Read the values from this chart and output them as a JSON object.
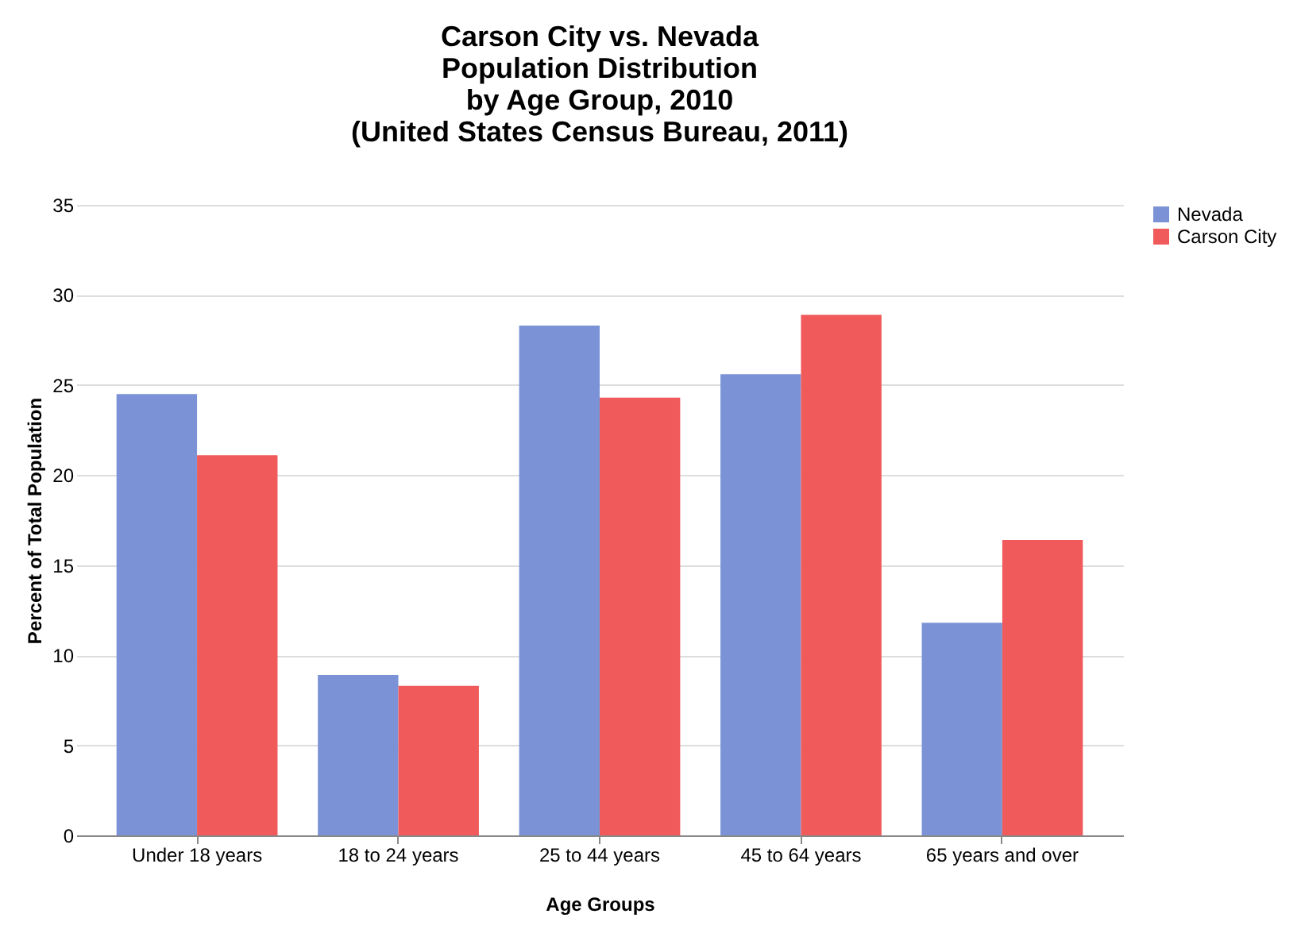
{
  "chart_data": {
    "type": "bar",
    "title": "Carson City vs. Nevada\nPopulation Distribution\nby Age Group, 2010\n(United States Census Bureau, 2011)",
    "xlabel": "Age Groups",
    "ylabel": "Percent of Total Population",
    "categories": [
      "Under 18 years",
      "18 to 24 years",
      "25 to 44 years",
      "45 to 64 years",
      "65 years and over"
    ],
    "series": [
      {
        "name": "Nevada",
        "color": "#7b93d6",
        "values": [
          24.5,
          8.9,
          28.3,
          25.6,
          11.8
        ]
      },
      {
        "name": "Carson City",
        "color": "#f05a5a",
        "values": [
          21.1,
          8.3,
          24.3,
          28.9,
          16.4
        ]
      }
    ],
    "ylim": [
      0,
      35
    ],
    "yticks": [
      0,
      5,
      10,
      15,
      20,
      25,
      30,
      35
    ],
    "grid": "y",
    "legend": "right"
  }
}
